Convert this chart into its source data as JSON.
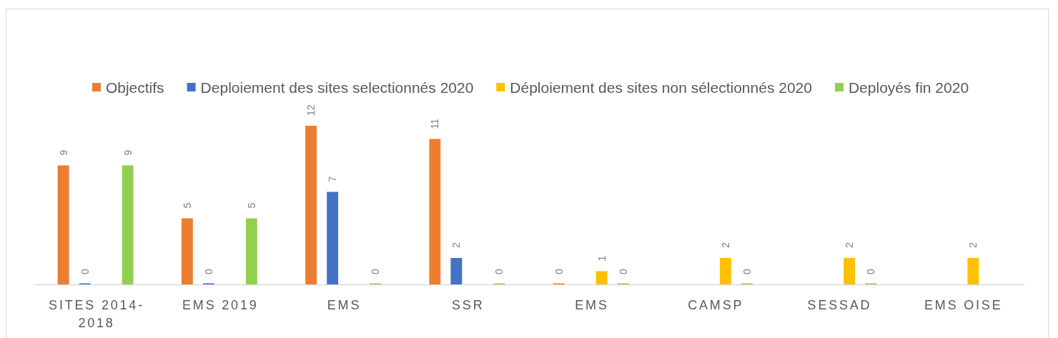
{
  "chart_data": {
    "type": "bar",
    "categories": [
      "SITES 2014-2018",
      "EMS 2019",
      "EMS",
      "SSR",
      "EMS",
      "CAMSP",
      "SESSAD",
      "EMS OISE"
    ],
    "series": [
      {
        "name": "Objectifs",
        "color": "#ed7d31",
        "values": [
          9,
          5,
          12,
          11,
          0,
          null,
          null,
          null
        ]
      },
      {
        "name": "Deploiement des sites selectionnés 2020",
        "color": "#4472c4",
        "values": [
          0,
          0,
          7,
          2,
          null,
          null,
          null,
          null
        ]
      },
      {
        "name": "Déploiement des sites non sélectionnés 2020",
        "color": "#ffc000",
        "values": [
          null,
          null,
          null,
          null,
          1,
          2,
          2,
          2
        ]
      },
      {
        "name": "Deployés fin 2020",
        "color": "#92d050",
        "values": [
          9,
          5,
          0,
          0,
          0,
          0,
          0,
          null
        ]
      }
    ],
    "data_labels": true,
    "legend": "top"
  }
}
